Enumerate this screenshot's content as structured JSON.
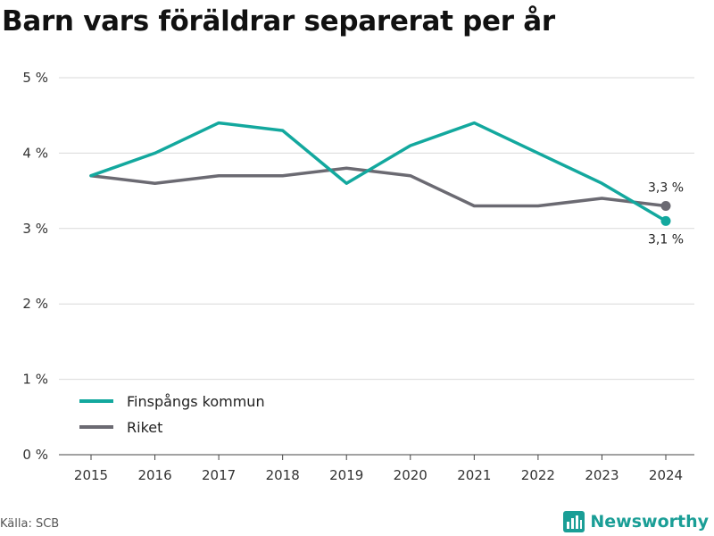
{
  "title": "Barn vars föräldrar separerat per år",
  "source": "Källa: SCB",
  "brand": "Newsworthy",
  "colors": {
    "primary": "#13a89e",
    "secondary": "#6b6a72",
    "grid": "#d9d9d9",
    "brand": "#1a9e96"
  },
  "chart_data": {
    "type": "line",
    "title": "Barn vars föräldrar separerat per år",
    "x": [
      2015,
      2016,
      2017,
      2018,
      2019,
      2020,
      2021,
      2022,
      2023,
      2024
    ],
    "ylim": [
      0,
      5
    ],
    "yticks": [
      0,
      1,
      2,
      3,
      4,
      5
    ],
    "ytick_labels": [
      "0 %",
      "1 %",
      "2 %",
      "3 %",
      "4 %",
      "5 %"
    ],
    "grid": true,
    "legend_position": "bottom-left",
    "series": [
      {
        "name": "Finspångs kommun",
        "color": "#13a89e",
        "values": [
          3.7,
          4.0,
          4.4,
          4.3,
          3.6,
          4.1,
          4.4,
          4.0,
          3.6,
          3.1
        ],
        "end_label": "3,1 %"
      },
      {
        "name": "Riket",
        "color": "#6b6a72",
        "values": [
          3.7,
          3.6,
          3.7,
          3.7,
          3.8,
          3.7,
          3.3,
          3.3,
          3.4,
          3.3
        ],
        "end_label": "3,3 %"
      }
    ]
  }
}
